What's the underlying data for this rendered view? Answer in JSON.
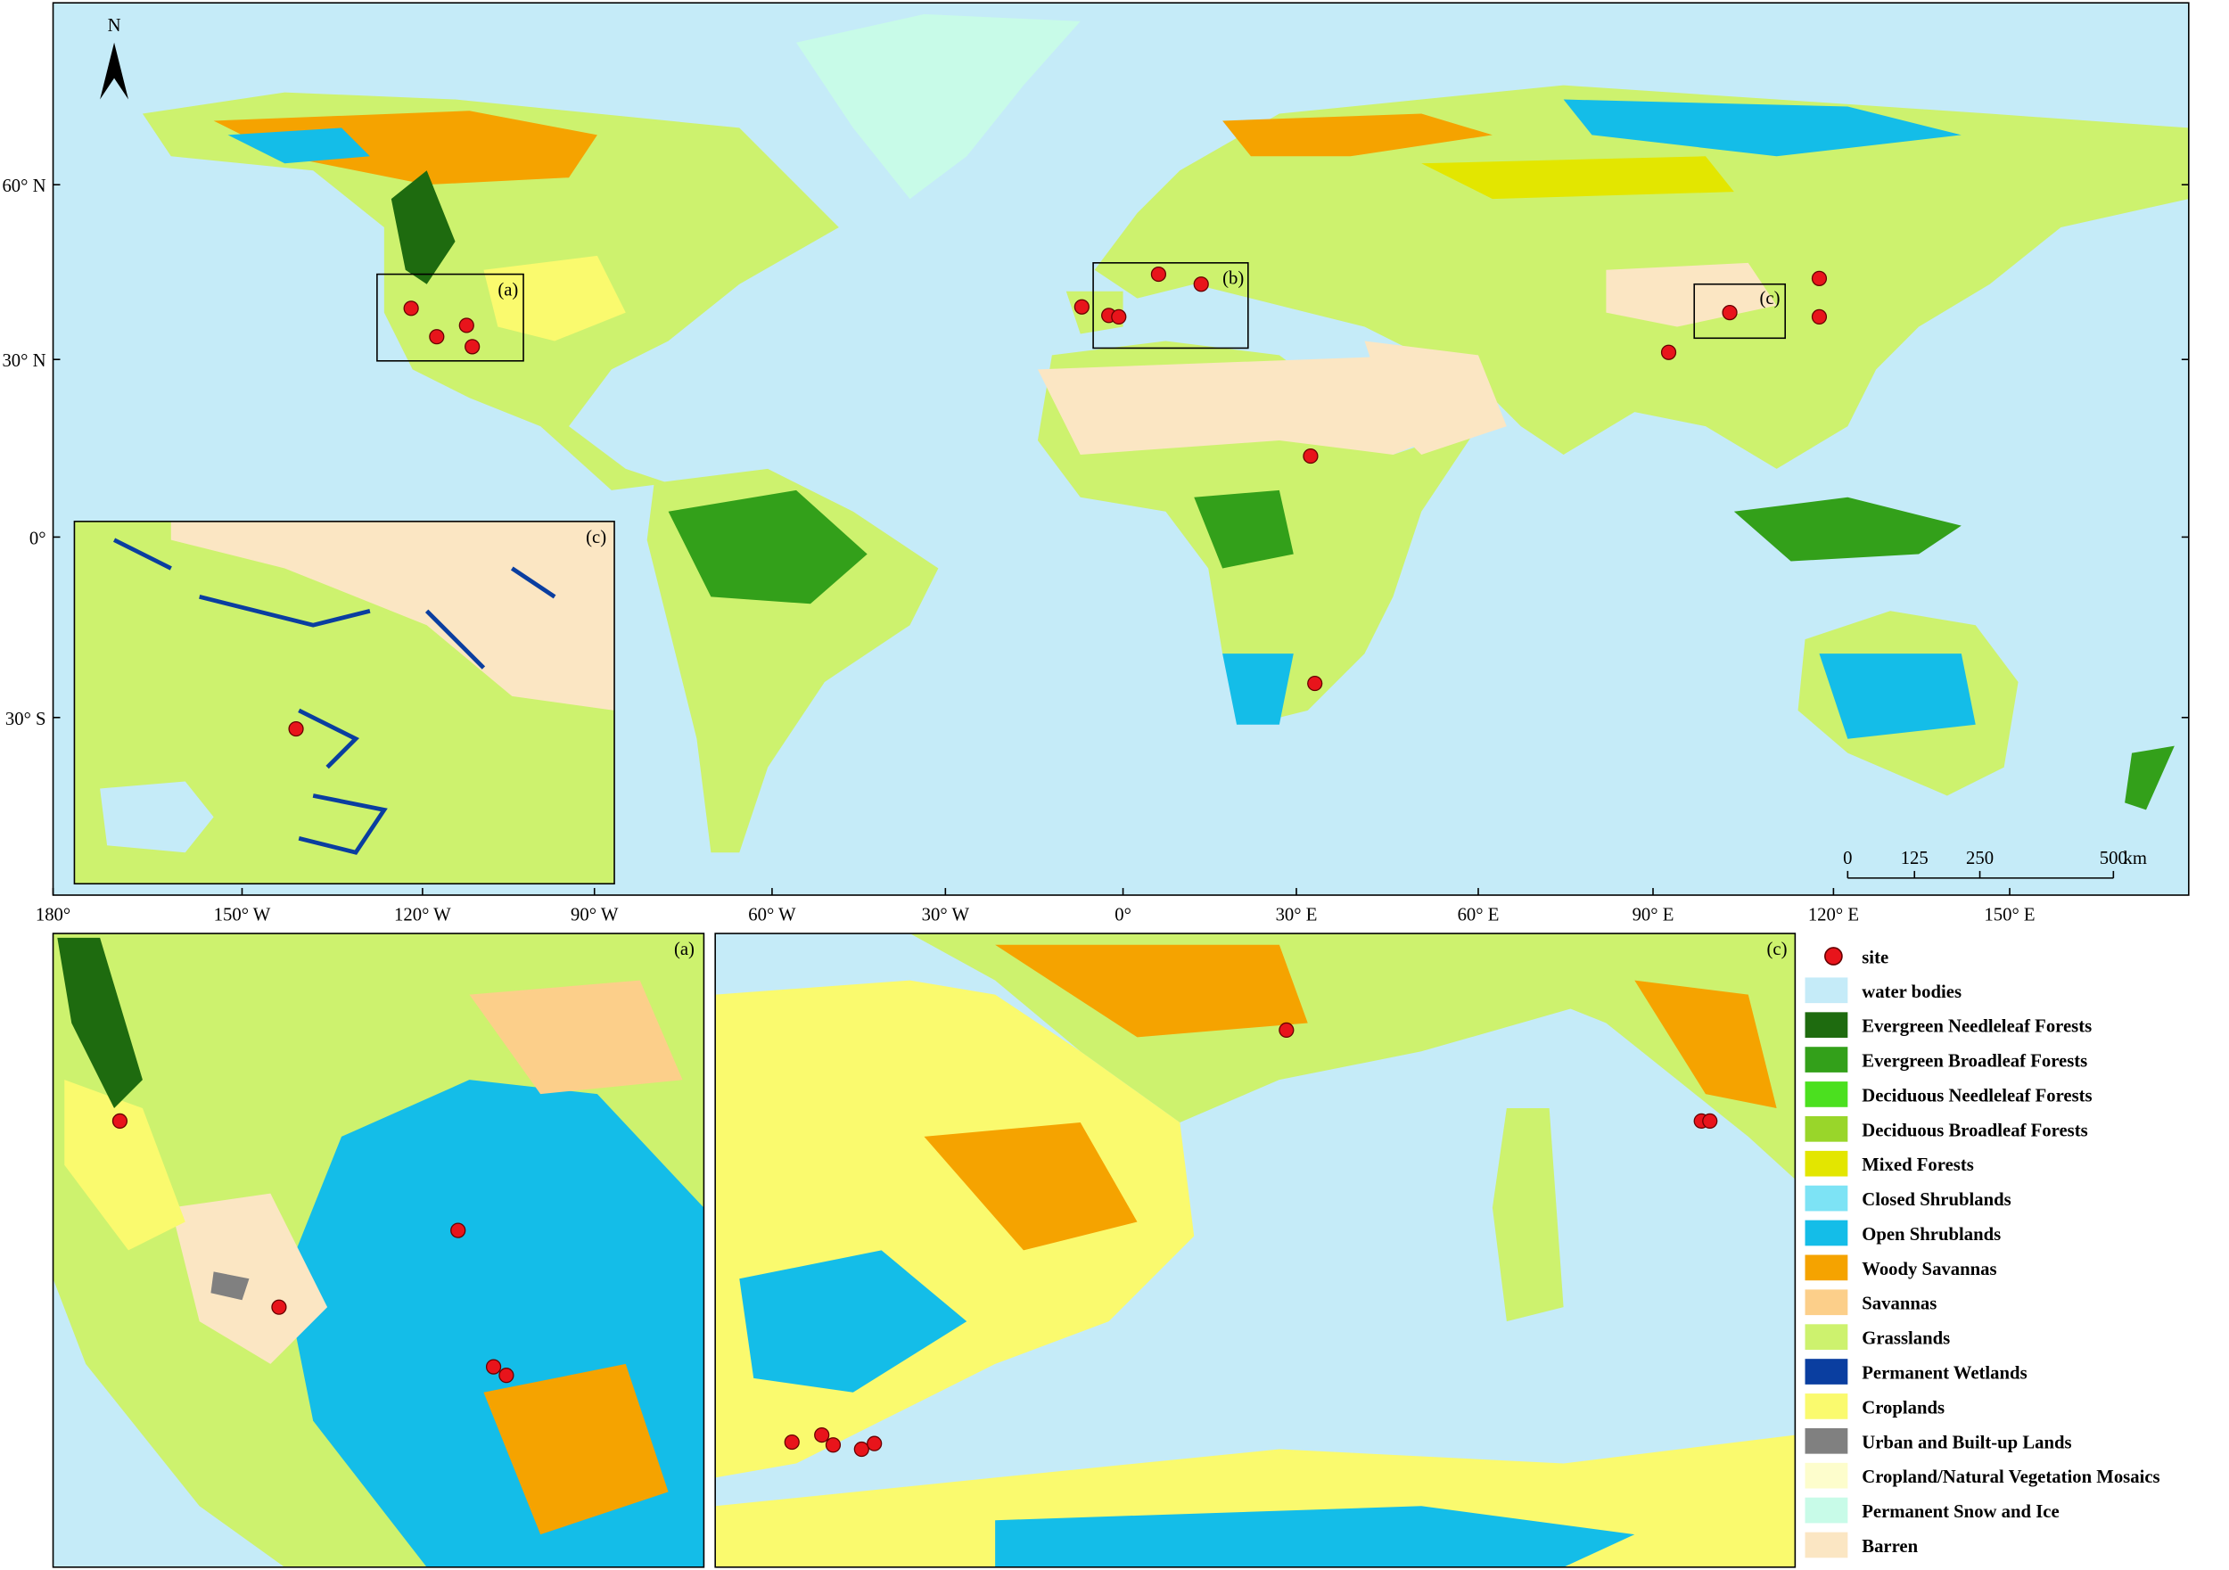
{
  "compass": "N",
  "latitude_labels": [
    "60° N",
    "30° N",
    "0°",
    "30° S"
  ],
  "longitude_labels": [
    "180°",
    "150° W",
    "120° W",
    "90° W",
    "60° W",
    "30° W",
    "0°",
    "30° E",
    "60° E",
    "90° E",
    "120° E",
    "150° E"
  ],
  "scale_bar": {
    "ticks": [
      "0",
      "125",
      "250",
      "500"
    ],
    "unit": "km"
  },
  "map_box_labels": [
    "(a)",
    "(b)",
    "(c)"
  ],
  "panel_labels": {
    "world_inset": "(c)",
    "bottom_left": "(a)",
    "bottom_right": "(c)"
  },
  "legend": {
    "site": {
      "name": "site",
      "color": "#e8141b"
    },
    "classes": [
      {
        "name": "water bodies",
        "color": "#c5ebf8"
      },
      {
        "name": "Evergreen Needleleaf Forests",
        "color": "#1e6b0f"
      },
      {
        "name": "Evergreen Broadleaf Forests",
        "color": "#33a01a"
      },
      {
        "name": "Deciduous Needleleaf Forests",
        "color": "#4be01f"
      },
      {
        "name": "Deciduous Broadleaf Forests",
        "color": "#99d62a"
      },
      {
        "name": "Mixed Forests",
        "color": "#e3e600"
      },
      {
        "name": "Closed Shrublands",
        "color": "#7de3f5"
      },
      {
        "name": "Open Shrublands",
        "color": "#14bde8"
      },
      {
        "name": "Woody Savannas",
        "color": "#f5a300"
      },
      {
        "name": "Savannas",
        "color": "#fccf8a"
      },
      {
        "name": "Grasslands",
        "color": "#cdf26e"
      },
      {
        "name": "Permanent Wetlands",
        "color": "#0a3ea0"
      },
      {
        "name": "Croplands",
        "color": "#fafa6e"
      },
      {
        "name": "Urban and Built-up Lands",
        "color": "#808080"
      },
      {
        "name": "Cropland/Natural Vegetation Mosaics",
        "color": "#fdfdcc"
      },
      {
        "name": "Permanent Snow and Ice",
        "color": "#c8fbe8"
      },
      {
        "name": "Barren",
        "color": "#fbe6c3"
      }
    ]
  }
}
